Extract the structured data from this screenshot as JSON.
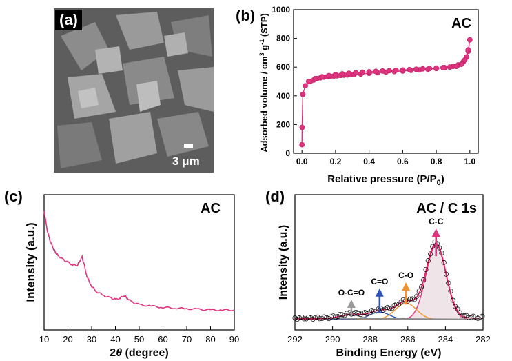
{
  "panel_a": {
    "label": "(a)",
    "scale_bar_text": "3 μm"
  },
  "panel_b": {
    "label": "(b)",
    "sample": "AC"
  },
  "panel_c": {
    "label": "(c)",
    "sample": "AC"
  },
  "panel_d": {
    "label": "(d)",
    "title": "AC / C 1s",
    "peaks": [
      "C-C",
      "C-O",
      "C=O",
      "O-C=O"
    ]
  },
  "colors": {
    "isotherm": "#e0337f",
    "xrd": "#e0337f",
    "cc": "#e0337f",
    "co": "#f39230",
    "ceo": "#2e55b5",
    "ocoo": "#9a9a9a",
    "envelope": "#e51b5d",
    "fill": "#efe4e8"
  },
  "chart_data": [
    {
      "type": "line",
      "panel": "(b)",
      "xlabel": "Relative pressure (P/P0)",
      "ylabel": "Adsorbed volume / cm3 g-1 (STP)",
      "xlim": [
        -0.05,
        1.05
      ],
      "ylim": [
        0,
        1000
      ],
      "xticks": [
        "0.0",
        "0.2",
        "0.4",
        "0.6",
        "0.8",
        "1.0"
      ],
      "yticks": [
        "0",
        "200",
        "400",
        "600",
        "800",
        "1000"
      ],
      "series": [
        {
          "x": [
            0.0,
            0.001,
            0.005,
            0.02,
            0.05,
            0.07,
            0.09,
            0.11,
            0.13,
            0.15,
            0.17,
            0.19,
            0.21,
            0.23,
            0.25,
            0.27,
            0.29,
            0.31,
            0.35,
            0.4,
            0.45,
            0.5,
            0.55,
            0.6,
            0.65,
            0.7,
            0.75,
            0.8,
            0.85,
            0.9,
            0.93,
            0.96,
            0.98,
            0.99,
            1.0
          ],
          "values": [
            60,
            180,
            410,
            470,
            500,
            510,
            520,
            525,
            530,
            533,
            536,
            538,
            540,
            542,
            544,
            545,
            547,
            548,
            552,
            557,
            561,
            565,
            569,
            573,
            577,
            581,
            585,
            590,
            596,
            605,
            615,
            635,
            670,
            710,
            790
          ]
        },
        {
          "x": [
            0.99,
            0.97,
            0.95,
            0.92,
            0.88,
            0.84,
            0.8,
            0.76,
            0.72,
            0.68,
            0.64,
            0.6,
            0.56,
            0.52,
            0.48,
            0.44,
            0.4,
            0.36,
            0.32,
            0.28,
            0.24,
            0.2,
            0.16,
            0.12,
            0.08,
            0.04
          ],
          "values": [
            720,
            650,
            620,
            605,
            600,
            596,
            593,
            590,
            588,
            585,
            583,
            580,
            578,
            575,
            573,
            570,
            567,
            564,
            561,
            557,
            553,
            548,
            541,
            533,
            520,
            500
          ]
        }
      ]
    },
    {
      "type": "line",
      "panel": "(c)",
      "xlabel": "2θ (degree)",
      "ylabel": "Intensity (a.u.)",
      "xlim": [
        10,
        90
      ],
      "xticks": [
        "10",
        "20",
        "30",
        "40",
        "50",
        "60",
        "70",
        "80",
        "90"
      ],
      "x": [
        10,
        11,
        12,
        13,
        14,
        15,
        16,
        18,
        20,
        22,
        24,
        25,
        26,
        27,
        28,
        30,
        32,
        35,
        38,
        40,
        42,
        43.5,
        45,
        47,
        50,
        55,
        60,
        65,
        70,
        75,
        80,
        85,
        90
      ],
      "values": [
        0.9,
        0.78,
        0.7,
        0.65,
        0.61,
        0.58,
        0.56,
        0.53,
        0.51,
        0.49,
        0.49,
        0.52,
        0.55,
        0.48,
        0.4,
        0.33,
        0.29,
        0.26,
        0.24,
        0.23,
        0.24,
        0.26,
        0.24,
        0.21,
        0.19,
        0.18,
        0.17,
        0.165,
        0.16,
        0.155,
        0.15,
        0.15,
        0.15
      ]
    },
    {
      "type": "line",
      "panel": "(d)",
      "xlabel": "Binding Energy (eV)",
      "ylabel": "Intensity (a.u.)",
      "xlim": [
        292,
        282
      ],
      "xticks": [
        "292",
        "290",
        "288",
        "286",
        "284",
        "282"
      ],
      "components": [
        {
          "name": "C-C",
          "center": 284.5,
          "height": 1.0
        },
        {
          "name": "C-O",
          "center": 286.1,
          "height": 0.22
        },
        {
          "name": "C=O",
          "center": 287.5,
          "height": 0.1
        },
        {
          "name": "O-C=O",
          "center": 289.0,
          "height": 0.06
        }
      ]
    }
  ]
}
